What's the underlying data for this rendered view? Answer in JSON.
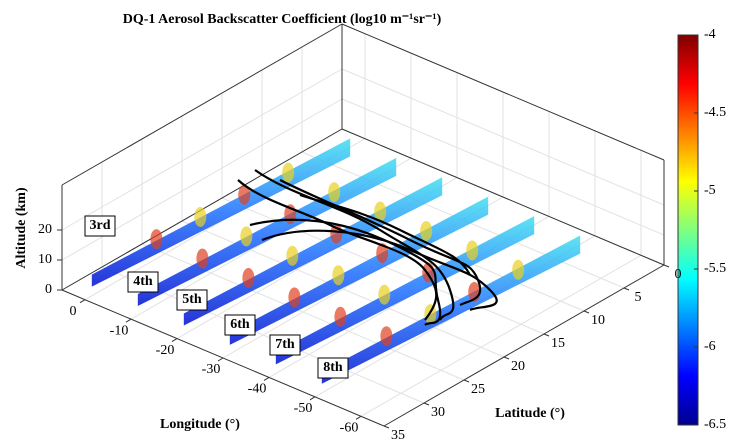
{
  "chart_data": {
    "type": "curtain3d",
    "title": "DQ-1 Aerosol Backscatter Coefficient (log10 m⁻¹sr⁻¹)",
    "xlabel": "Longitude (°)",
    "ylabel": "Latitude (°)",
    "zlabel": "Altitude (km)",
    "xlim": [
      5,
      -65
    ],
    "xticks": [
      0,
      -10,
      -20,
      -30,
      -40,
      -50,
      -60
    ],
    "ylim": [
      0,
      35
    ],
    "yticks": [
      0,
      5,
      10,
      15,
      20,
      25,
      30,
      35
    ],
    "zlim": [
      0,
      35
    ],
    "zticks": [
      0,
      10,
      20
    ],
    "grid": true,
    "colormap": "jet",
    "clim": [
      -6.5,
      -4
    ],
    "cticks": [
      -4,
      -4.5,
      -5,
      -5.5,
      -6,
      -6.5
    ],
    "annotations": [
      "3rd",
      "4th",
      "5th",
      "6th",
      "7th",
      "8th"
    ]
  }
}
